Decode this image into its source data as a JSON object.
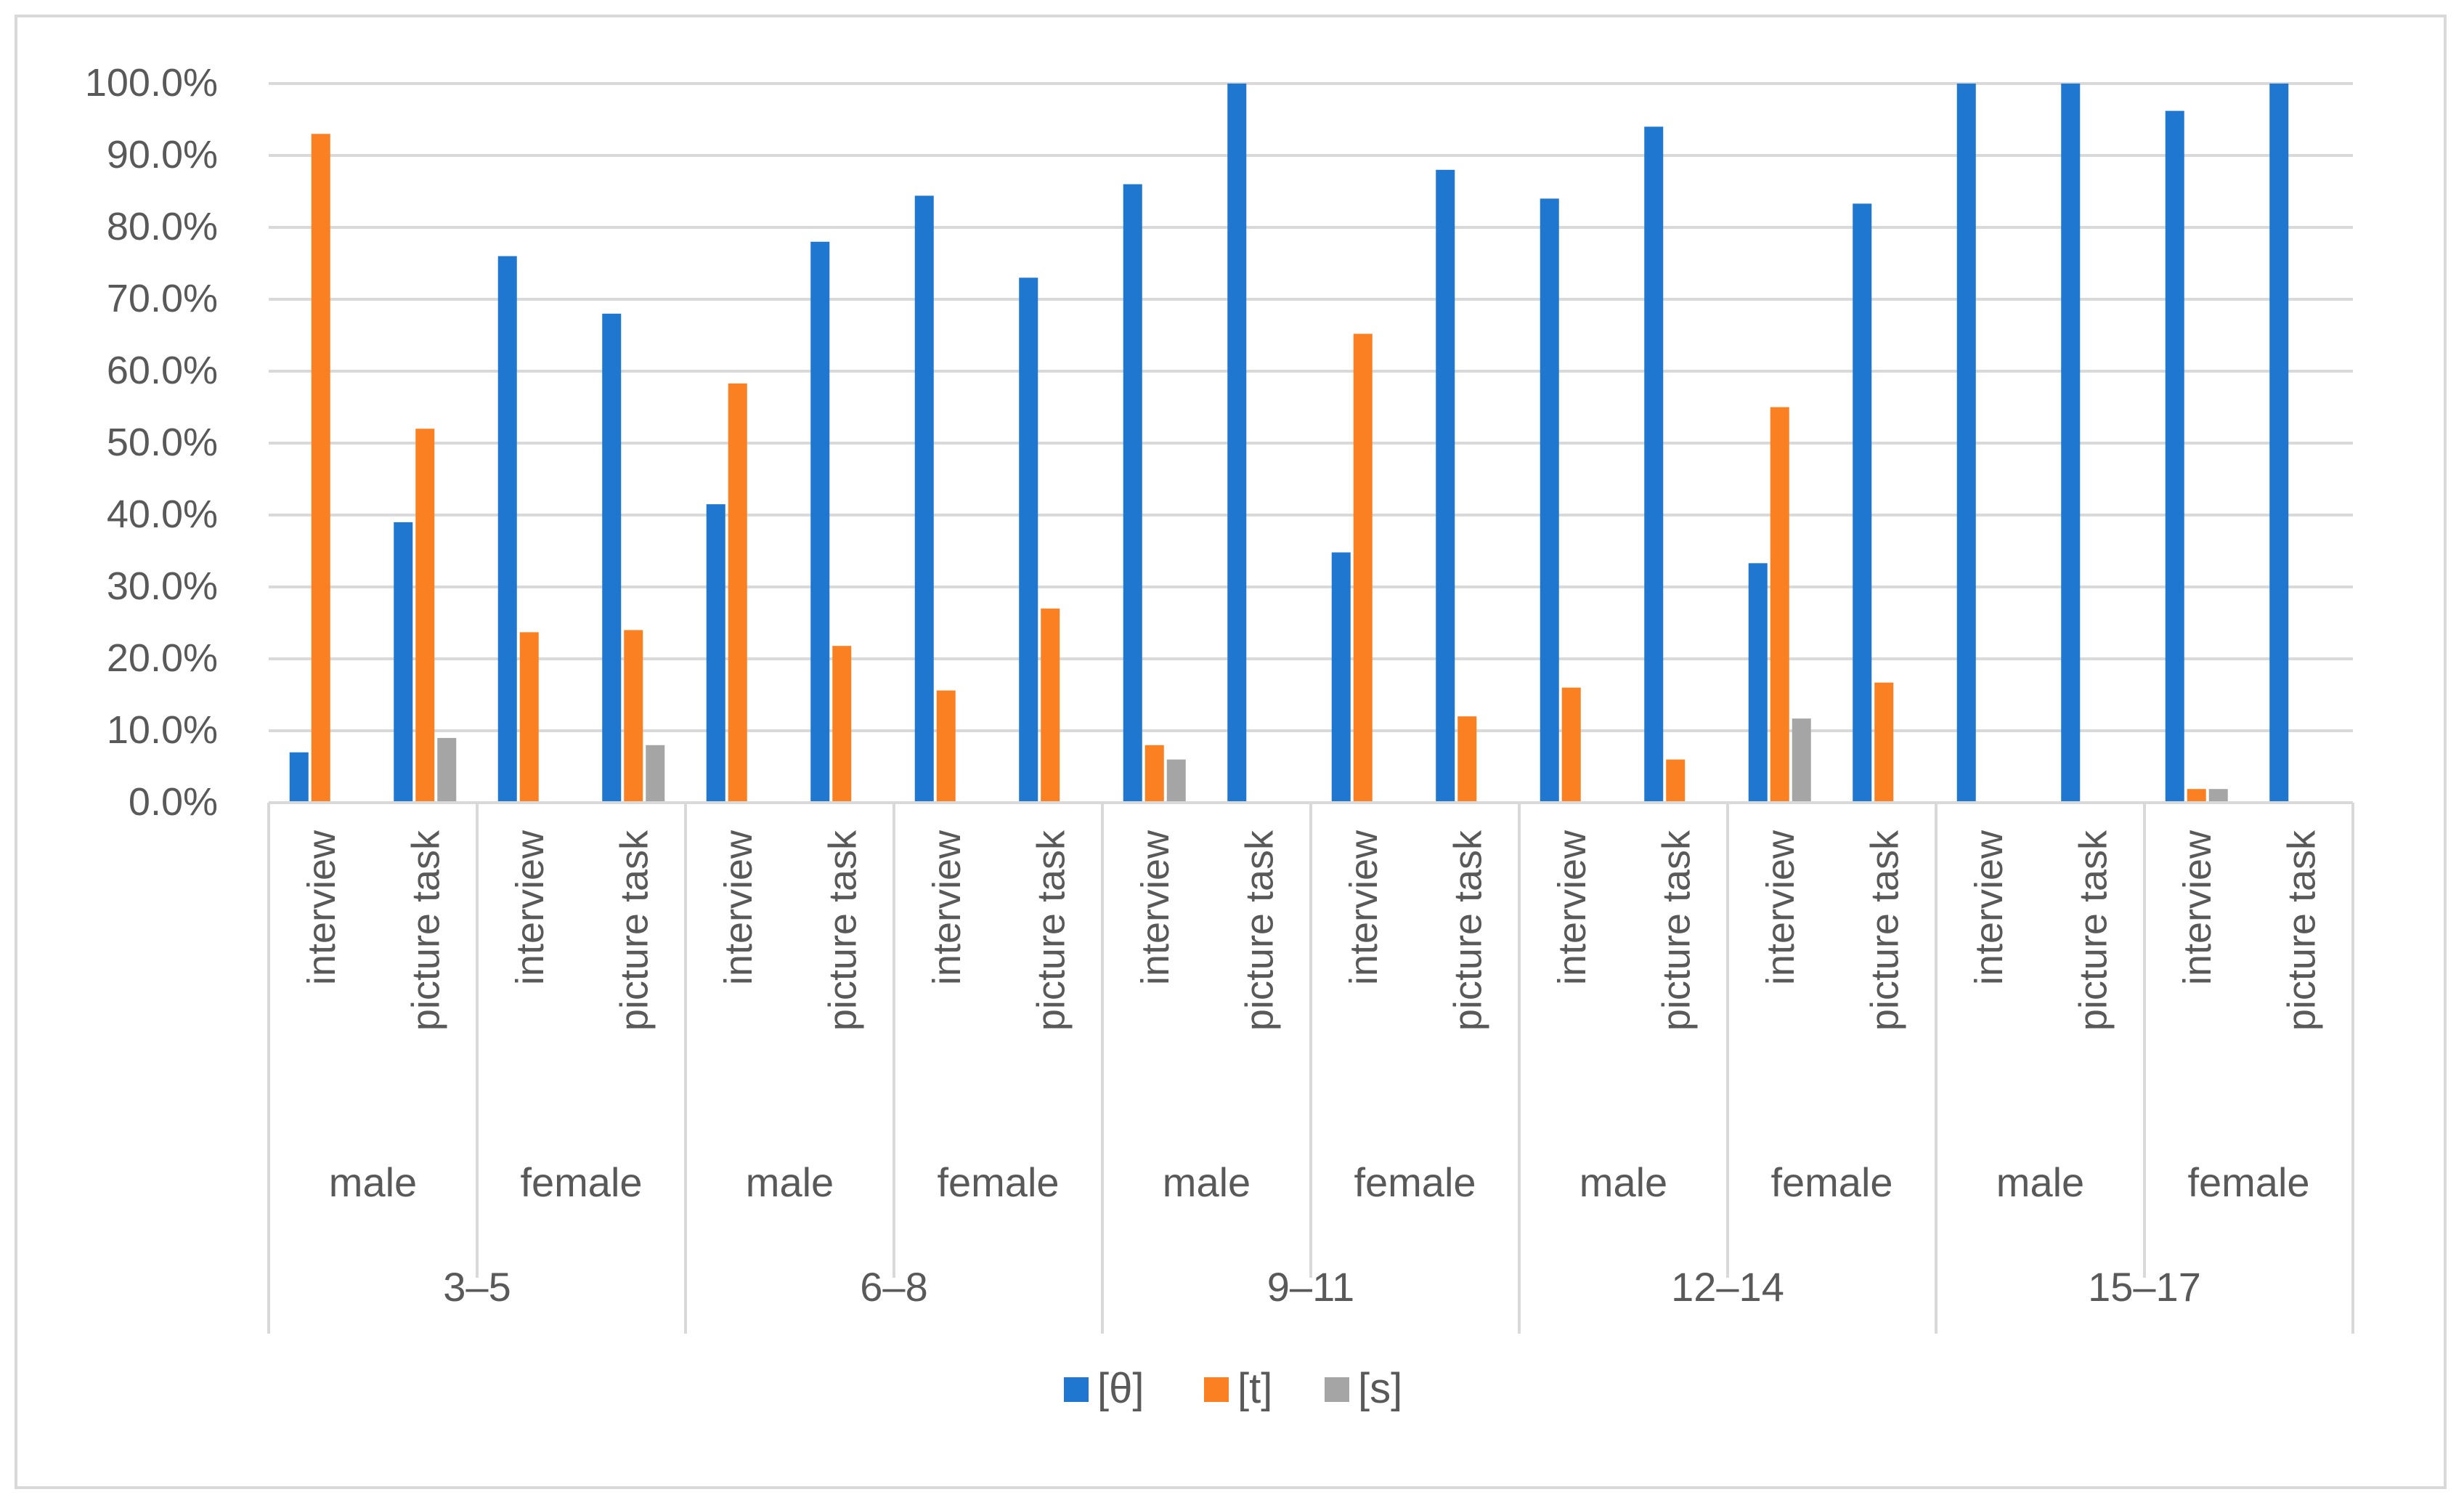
{
  "chart_data": {
    "type": "bar",
    "title": "",
    "xlabel": "",
    "ylabel": "",
    "ylim": [
      0,
      100
    ],
    "y_ticks": [
      "0.0%",
      "10.0%",
      "20.0%",
      "30.0%",
      "40.0%",
      "50.0%",
      "60.0%",
      "70.0%",
      "80.0%",
      "90.0%",
      "100.0%"
    ],
    "grid": true,
    "legend_position": "bottom",
    "age_groups": [
      {
        "label": "3–5",
        "genders": [
          {
            "label": "male",
            "tasks": [
              "interview",
              "picture task"
            ]
          },
          {
            "label": "female",
            "tasks": [
              "interview",
              "picture task"
            ]
          }
        ]
      },
      {
        "label": "6–8",
        "genders": [
          {
            "label": "male",
            "tasks": [
              "interview",
              "picture task"
            ]
          },
          {
            "label": "female",
            "tasks": [
              "interview",
              "picture task"
            ]
          }
        ]
      },
      {
        "label": "9–11",
        "genders": [
          {
            "label": "male",
            "tasks": [
              "interview",
              "picture task"
            ]
          },
          {
            "label": "female",
            "tasks": [
              "interview",
              "picture task"
            ]
          }
        ]
      },
      {
        "label": "12–14",
        "genders": [
          {
            "label": "male",
            "tasks": [
              "interview",
              "picture task"
            ]
          },
          {
            "label": "female",
            "tasks": [
              "interview",
              "picture task"
            ]
          }
        ]
      },
      {
        "label": "15–17",
        "genders": [
          {
            "label": "male",
            "tasks": [
              "interview",
              "picture task"
            ]
          },
          {
            "label": "female",
            "tasks": [
              "interview",
              "picture task"
            ]
          }
        ]
      }
    ],
    "series": [
      {
        "name": "[θ]",
        "color": "#1f77d0",
        "values": [
          7,
          39,
          76,
          68,
          41.5,
          78,
          84.4,
          73,
          86,
          100,
          34.8,
          88,
          84,
          94,
          33.3,
          83.3,
          100,
          100,
          96.2,
          100
        ]
      },
      {
        "name": "[t]",
        "color": "#fb8022",
        "values": [
          93,
          52,
          23.7,
          24,
          58.3,
          21.8,
          15.6,
          27,
          8,
          0,
          65.2,
          12,
          16,
          6,
          55,
          16.7,
          0,
          0,
          1.9,
          0
        ]
      },
      {
        "name": "[s]",
        "color": "#a5a5a5",
        "values": [
          0,
          9,
          0,
          8,
          0,
          0,
          0,
          0,
          6,
          0,
          0,
          0,
          0,
          0,
          11.7,
          0,
          0,
          0,
          1.9,
          0
        ]
      }
    ]
  }
}
